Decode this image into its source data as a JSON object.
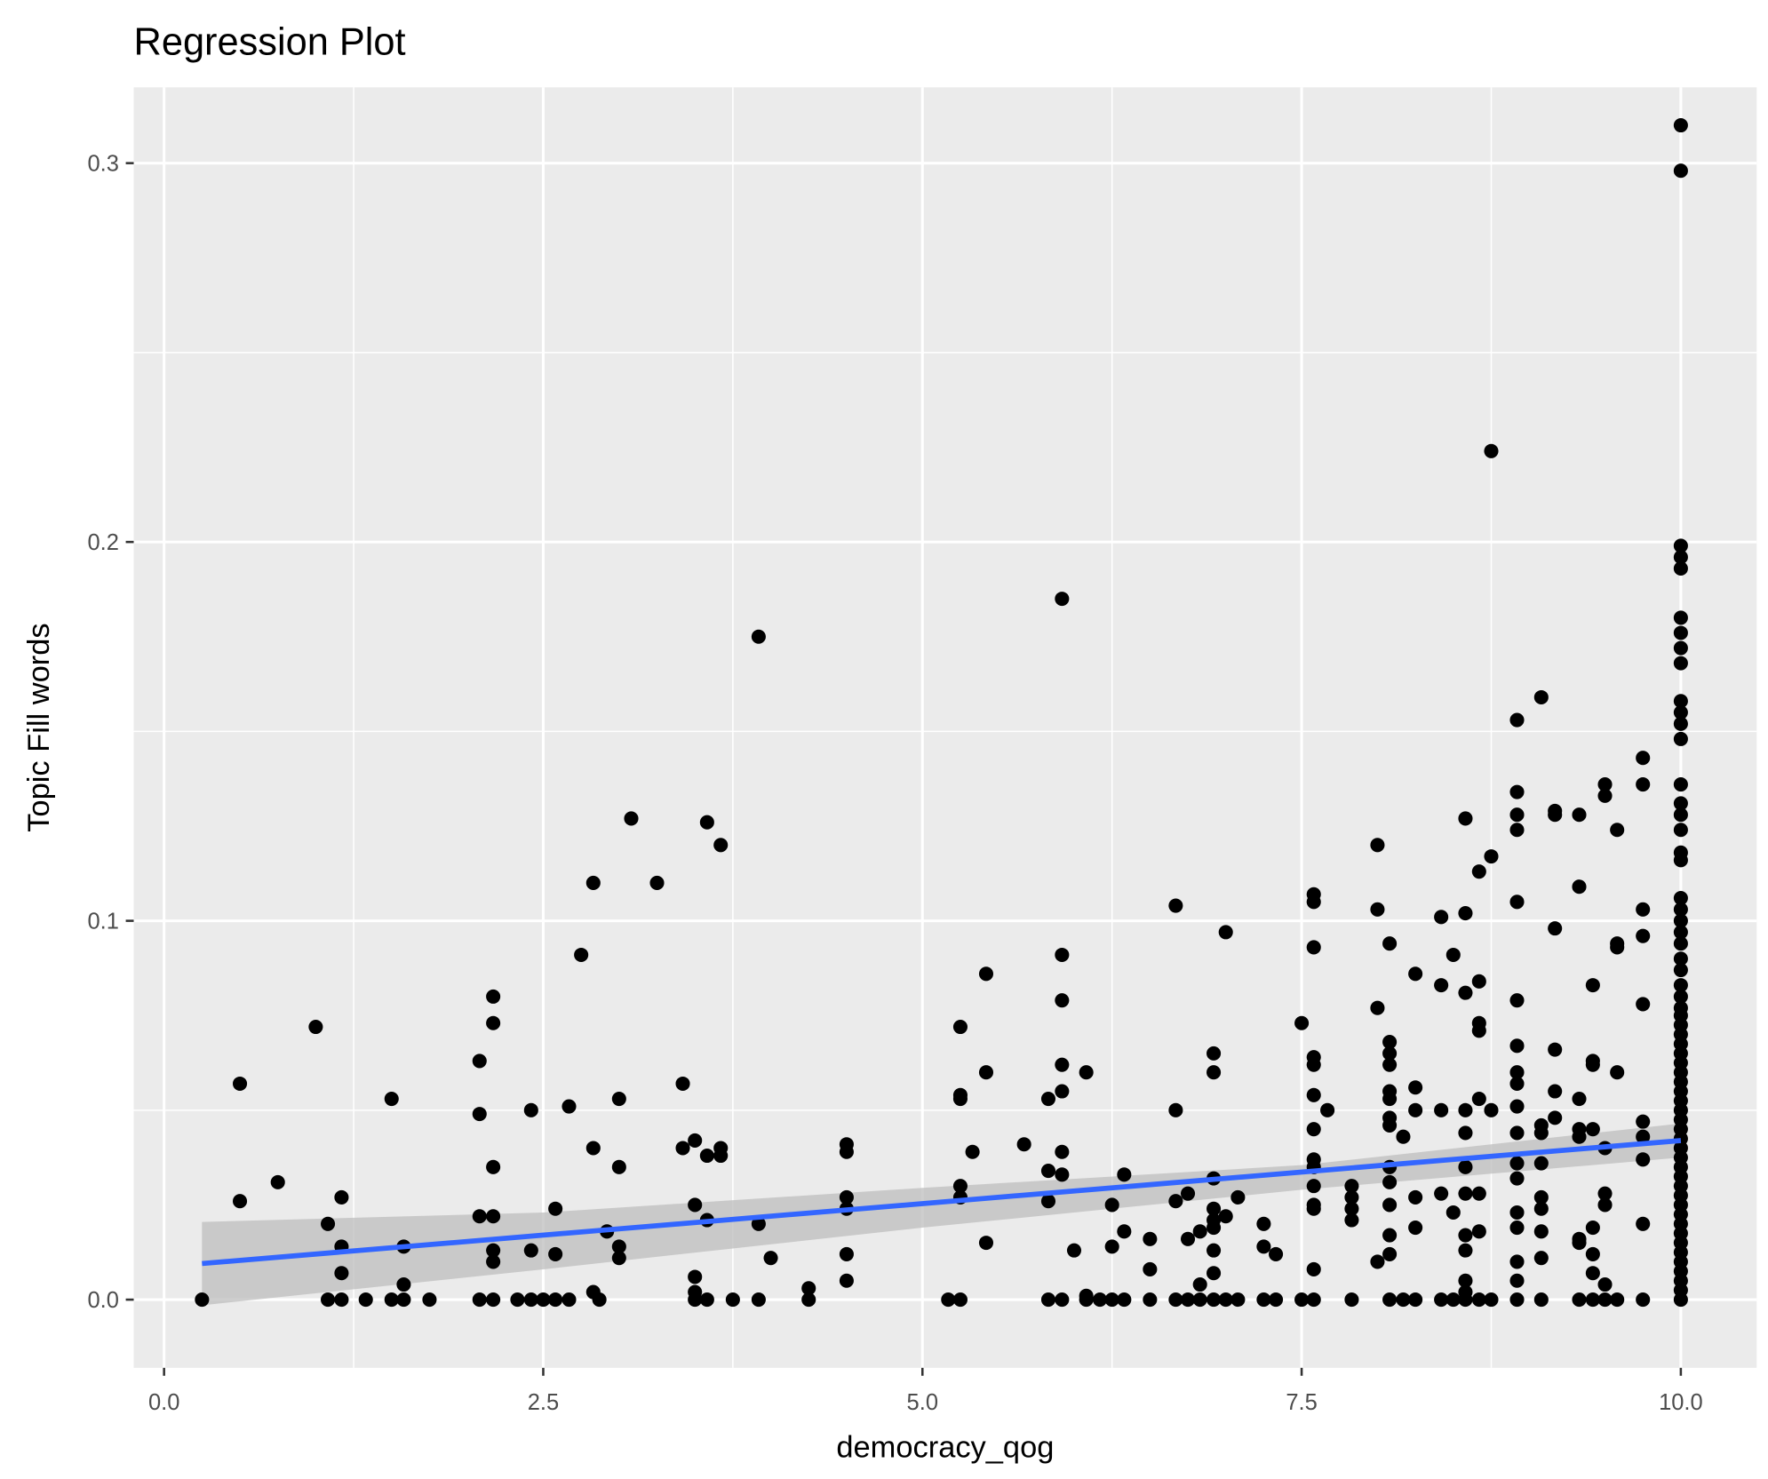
{
  "chart_data": {
    "type": "scatter",
    "title": "Regression Plot",
    "xlabel": "democracy_qog",
    "ylabel": "Topic Fill words",
    "xlim": [
      -0.2,
      10.5
    ],
    "ylim": [
      -0.018,
      0.32
    ],
    "x_ticks": [
      0,
      2.5,
      5,
      7.5,
      10
    ],
    "x_tick_labels": [
      "0.0",
      "2.5",
      "5.0",
      "7.5",
      "10.0"
    ],
    "y_ticks": [
      0,
      0.1,
      0.2,
      0.3
    ],
    "y_tick_labels": [
      "0.0",
      "0.1",
      "0.2",
      "0.3"
    ],
    "grid": true,
    "colors": {
      "panel": "#ebebeb",
      "grid": "#ffffff",
      "point": "#000000",
      "line": "#3366ff",
      "ribbon": "#bebebe"
    },
    "regression": {
      "intercept": 0.0087,
      "slope": 0.00333,
      "x_range": [
        0.25,
        10
      ]
    },
    "confidence_band": {
      "x": [
        0.25,
        2.5,
        5,
        7.5,
        10
      ],
      "lower": [
        -0.0015,
        0.008,
        0.019,
        0.029,
        0.0375
      ],
      "upper": [
        0.0205,
        0.023,
        0.0295,
        0.0355,
        0.0465
      ]
    },
    "points": [
      {
        "x": 0.25,
        "y": [
          0
        ]
      },
      {
        "x": 0.5,
        "y": [
          0.057,
          0.026
        ]
      },
      {
        "x": 0.75,
        "y": [
          0.031
        ]
      },
      {
        "x": 1.0,
        "y": [
          0.072
        ]
      },
      {
        "x": 1.08,
        "y": [
          0.02,
          0
        ]
      },
      {
        "x": 1.17,
        "y": [
          0.027,
          0.014,
          0.007,
          0
        ]
      },
      {
        "x": 1.33,
        "y": [
          0
        ]
      },
      {
        "x": 1.5,
        "y": [
          0.053,
          0
        ]
      },
      {
        "x": 1.58,
        "y": [
          0.014,
          0.004,
          0
        ]
      },
      {
        "x": 1.75,
        "y": [
          0
        ]
      },
      {
        "x": 2.08,
        "y": [
          0.063,
          0.049,
          0.022,
          0
        ]
      },
      {
        "x": 2.17,
        "y": [
          0.08,
          0.073,
          0.035,
          0.022,
          0.013,
          0.01,
          0
        ]
      },
      {
        "x": 2.33,
        "y": [
          0
        ]
      },
      {
        "x": 2.42,
        "y": [
          0.05,
          0.013,
          0
        ]
      },
      {
        "x": 2.5,
        "y": [
          0
        ]
      },
      {
        "x": 2.58,
        "y": [
          0.024,
          0.012,
          0
        ]
      },
      {
        "x": 2.67,
        "y": [
          0.051,
          0
        ]
      },
      {
        "x": 2.75,
        "y": [
          0.091
        ]
      },
      {
        "x": 2.83,
        "y": [
          0.11,
          0.04,
          0.002
        ]
      },
      {
        "x": 2.87,
        "y": [
          0
        ]
      },
      {
        "x": 2.92,
        "y": [
          0.018
        ]
      },
      {
        "x": 3.0,
        "y": [
          0.053,
          0.035,
          0.014,
          0.011
        ]
      },
      {
        "x": 3.08,
        "y": [
          0.127
        ]
      },
      {
        "x": 3.25,
        "y": [
          0.11
        ]
      },
      {
        "x": 3.42,
        "y": [
          0.057,
          0.04
        ]
      },
      {
        "x": 3.5,
        "y": [
          0.042,
          0.025,
          0.006,
          0.002,
          0
        ]
      },
      {
        "x": 3.58,
        "y": [
          0.126,
          0.038,
          0.021,
          0
        ]
      },
      {
        "x": 3.67,
        "y": [
          0.12,
          0.04,
          0.038
        ]
      },
      {
        "x": 3.75,
        "y": [
          0
        ]
      },
      {
        "x": 3.92,
        "y": [
          0.175,
          0.02,
          0
        ]
      },
      {
        "x": 4.0,
        "y": [
          0.011
        ]
      },
      {
        "x": 4.25,
        "y": [
          0.003,
          0
        ]
      },
      {
        "x": 4.5,
        "y": [
          0.041,
          0.039,
          0.027,
          0.024,
          0.012,
          0.005
        ]
      },
      {
        "x": 5.17,
        "y": [
          0
        ]
      },
      {
        "x": 5.25,
        "y": [
          0.072,
          0.054,
          0.053,
          0.03,
          0.027,
          0
        ]
      },
      {
        "x": 5.33,
        "y": [
          0.039
        ]
      },
      {
        "x": 5.42,
        "y": [
          0.086,
          0.06,
          0.015
        ]
      },
      {
        "x": 5.67,
        "y": [
          0.041
        ]
      },
      {
        "x": 5.83,
        "y": [
          0.053,
          0.034,
          0.026,
          0
        ]
      },
      {
        "x": 5.92,
        "y": [
          0.185,
          0.091,
          0.079,
          0.062,
          0.055,
          0.039,
          0.033,
          0
        ]
      },
      {
        "x": 6.0,
        "y": [
          0.013
        ]
      },
      {
        "x": 6.08,
        "y": [
          0.06,
          0.001,
          0
        ]
      },
      {
        "x": 6.17,
        "y": [
          0
        ]
      },
      {
        "x": 6.25,
        "y": [
          0.025,
          0.014,
          0
        ]
      },
      {
        "x": 6.33,
        "y": [
          0.033,
          0.018,
          0
        ]
      },
      {
        "x": 6.5,
        "y": [
          0.016,
          0.008,
          0
        ]
      },
      {
        "x": 6.67,
        "y": [
          0.104,
          0.05,
          0.026,
          0
        ]
      },
      {
        "x": 6.75,
        "y": [
          0.028,
          0.016,
          0
        ]
      },
      {
        "x": 6.83,
        "y": [
          0.018,
          0.004,
          0
        ]
      },
      {
        "x": 6.92,
        "y": [
          0.065,
          0.06,
          0.032,
          0.024,
          0.021,
          0.019,
          0.013,
          0.007,
          0
        ]
      },
      {
        "x": 7.0,
        "y": [
          0.097,
          0.022,
          0
        ]
      },
      {
        "x": 7.08,
        "y": [
          0.027,
          0
        ]
      },
      {
        "x": 7.25,
        "y": [
          0.02,
          0.014,
          0
        ]
      },
      {
        "x": 7.33,
        "y": [
          0.012,
          0
        ]
      },
      {
        "x": 7.5,
        "y": [
          0.073,
          0
        ]
      },
      {
        "x": 7.58,
        "y": [
          0.107,
          0.105,
          0.093,
          0.064,
          0.062,
          0.054,
          0.045,
          0.037,
          0.035,
          0.03,
          0.025,
          0.024,
          0.008,
          0
        ]
      },
      {
        "x": 7.67,
        "y": [
          0.05
        ]
      },
      {
        "x": 7.83,
        "y": [
          0.03,
          0.027,
          0.024,
          0.021,
          0
        ]
      },
      {
        "x": 8.0,
        "y": [
          0.12,
          0.103,
          0.077,
          0.01
        ]
      },
      {
        "x": 8.08,
        "y": [
          0.094,
          0.068,
          0.065,
          0.062,
          0.055,
          0.053,
          0.048,
          0.046,
          0.035,
          0.031,
          0.025,
          0.017,
          0.012,
          0
        ]
      },
      {
        "x": 8.17,
        "y": [
          0.043,
          0
        ]
      },
      {
        "x": 8.25,
        "y": [
          0.086,
          0.056,
          0.05,
          0.027,
          0.019,
          0
        ]
      },
      {
        "x": 8.42,
        "y": [
          0.101,
          0.083,
          0.05,
          0.028,
          0
        ]
      },
      {
        "x": 8.5,
        "y": [
          0.091,
          0.023,
          0
        ]
      },
      {
        "x": 8.58,
        "y": [
          0.127,
          0.102,
          0.081,
          0.05,
          0.044,
          0.035,
          0.028,
          0.017,
          0.013,
          0.005,
          0.002,
          0
        ]
      },
      {
        "x": 8.67,
        "y": [
          0.113,
          0.084,
          0.073,
          0.071,
          0.053,
          0.028,
          0.018,
          0
        ]
      },
      {
        "x": 8.75,
        "y": [
          0.224,
          0.117,
          0.05,
          0
        ]
      },
      {
        "x": 8.92,
        "y": [
          0.153,
          0.134,
          0.128,
          0.124,
          0.105,
          0.079,
          0.067,
          0.06,
          0.057,
          0.051,
          0.044,
          0.036,
          0.032,
          0.023,
          0.019,
          0.01,
          0.005,
          0
        ]
      },
      {
        "x": 9.08,
        "y": [
          0.159,
          0.046,
          0.044,
          0.036,
          0.027,
          0.024,
          0.018,
          0.011,
          0
        ]
      },
      {
        "x": 9.17,
        "y": [
          0.129,
          0.128,
          0.098,
          0.066,
          0.055,
          0.048
        ]
      },
      {
        "x": 9.33,
        "y": [
          0.128,
          0.109,
          0.053,
          0.045,
          0.043,
          0.016,
          0.015,
          0
        ]
      },
      {
        "x": 9.42,
        "y": [
          0.083,
          0.063,
          0.062,
          0.045,
          0.019,
          0.012,
          0.007,
          0
        ]
      },
      {
        "x": 9.5,
        "y": [
          0.136,
          0.133,
          0.04,
          0.028,
          0.025,
          0.004,
          0
        ]
      },
      {
        "x": 9.58,
        "y": [
          0.124,
          0.094,
          0.093,
          0.06,
          0
        ]
      },
      {
        "x": 9.75,
        "y": [
          0.143,
          0.136,
          0.103,
          0.096,
          0.078,
          0.047,
          0.043,
          0.037,
          0.02,
          0
        ]
      },
      {
        "x": 10.0,
        "y": [
          0.31,
          0.298,
          0.199,
          0.196,
          0.193,
          0.18,
          0.176,
          0.172,
          0.168,
          0.158,
          0.155,
          0.152,
          0.148,
          0.136,
          0.131,
          0.128,
          0.124,
          0.118,
          0.116,
          0.106,
          0.103,
          0.1,
          0.097,
          0.094,
          0.09,
          0.087,
          0.083,
          0.08,
          0.077,
          0.075,
          0.0725,
          0.07,
          0.0675,
          0.065,
          0.0625,
          0.06,
          0.0575,
          0.055,
          0.0525,
          0.05,
          0.0475,
          0.045,
          0.0425,
          0.04,
          0.0375,
          0.035,
          0.0325,
          0.03,
          0.0275,
          0.025,
          0.0225,
          0.02,
          0.0175,
          0.015,
          0.0125,
          0.01,
          0.0075,
          0.005,
          0.0025,
          0
        ]
      }
    ]
  }
}
